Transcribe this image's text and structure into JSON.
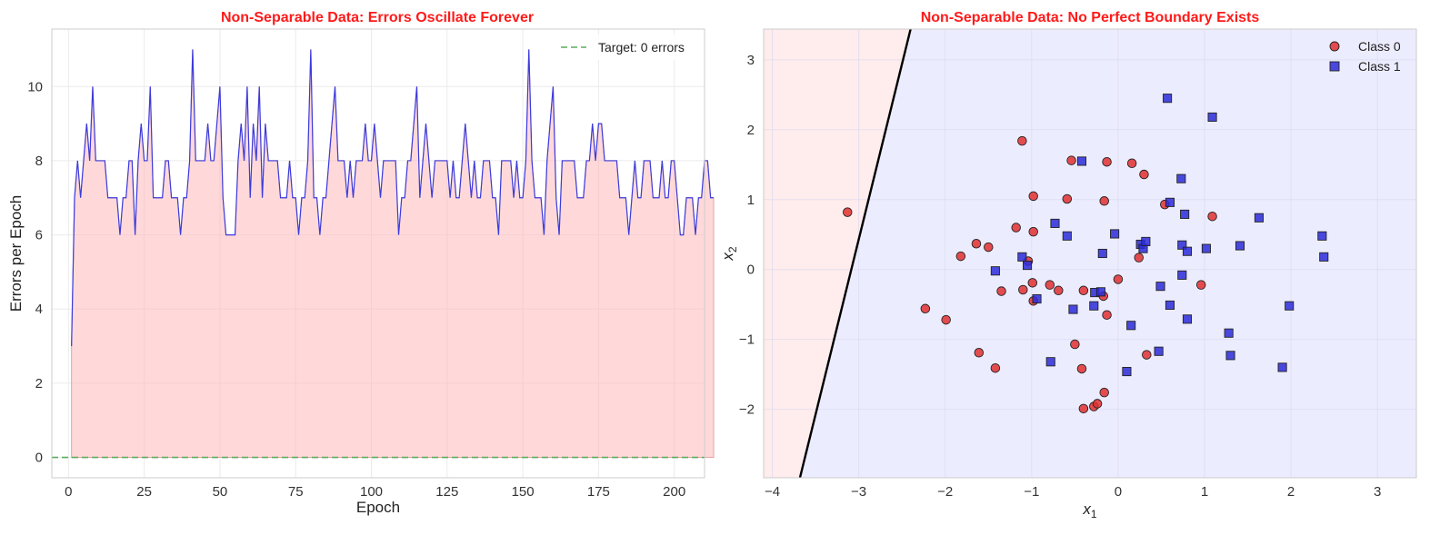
{
  "chart_data": [
    {
      "type": "line",
      "title": "Non-Separable Data: Errors Oscillate Forever",
      "xlabel": "Epoch",
      "ylabel": "Errors per Epoch",
      "xlim": [
        -5.5,
        210
      ],
      "ylim": [
        -0.55,
        11.55
      ],
      "xticks": [
        0,
        25,
        50,
        75,
        100,
        125,
        150,
        175,
        200
      ],
      "yticks": [
        0,
        2,
        4,
        6,
        8,
        10
      ],
      "grid": true,
      "legend_position": "top-right",
      "series": [
        {
          "name": "",
          "color": "#3b3bdd",
          "fill_color": "#ffb3b6",
          "x_start": 1,
          "values": [
            3,
            7,
            8,
            7,
            8,
            9,
            8,
            10,
            8,
            8,
            8,
            8,
            7,
            7,
            7,
            7,
            6,
            7,
            7,
            8,
            8,
            6,
            8,
            9,
            8,
            8,
            10,
            7,
            7,
            7,
            7,
            8,
            8,
            7,
            7,
            7,
            6,
            7,
            7,
            8,
            11,
            8,
            8,
            8,
            8,
            9,
            8,
            8,
            9,
            10,
            7,
            6,
            6,
            6,
            6,
            8,
            9,
            8,
            10,
            7,
            9,
            8,
            10,
            7,
            9,
            8,
            8,
            8,
            8,
            7,
            7,
            7,
            8,
            7,
            7,
            6,
            7,
            7,
            8,
            11,
            7,
            7,
            6,
            7,
            7,
            8,
            9,
            10,
            8,
            8,
            8,
            7,
            8,
            7,
            8,
            8,
            8,
            9,
            8,
            8,
            9,
            8,
            7,
            8,
            8,
            8,
            8,
            8,
            6,
            7,
            7,
            8,
            8,
            9,
            10,
            7,
            8,
            9,
            8,
            7,
            8,
            8,
            8,
            8,
            8,
            7,
            8,
            7,
            7,
            8,
            9,
            8,
            7,
            8,
            7,
            7,
            8,
            8,
            8,
            7,
            7,
            6,
            8,
            8,
            8,
            8,
            7,
            8,
            7,
            7,
            8,
            11,
            8,
            7,
            7,
            7,
            6,
            8,
            9,
            10,
            7,
            6,
            8,
            8,
            8,
            8,
            8,
            7,
            7,
            7,
            8,
            8,
            9,
            8,
            9,
            9,
            8,
            8,
            8,
            8,
            8,
            7,
            7,
            7,
            6,
            7,
            8,
            7,
            7,
            8,
            8,
            8,
            7,
            7,
            7,
            8,
            7,
            7,
            8,
            8,
            7,
            6,
            6,
            7,
            7,
            7,
            6,
            7,
            7,
            8,
            8,
            7,
            7
          ],
          "line_width": 1.2
        },
        {
          "name": "Target: 0 errors",
          "color": "#5cab5c",
          "style": "dashed",
          "y_constant": 0
        }
      ]
    },
    {
      "type": "scatter",
      "title": "Non-Separable Data: No Perfect Boundary Exists",
      "xlabel": "x",
      "xlabel_subscript": "1",
      "ylabel": "x",
      "ylabel_subscript": "2",
      "xlim": [
        -4.1,
        3.45
      ],
      "ylim": [
        -2.98,
        3.44
      ],
      "xticks": [
        -4,
        -3,
        -2,
        -1,
        0,
        1,
        2,
        3
      ],
      "yticks": [
        -2,
        -1,
        0,
        1,
        2,
        3
      ],
      "grid": true,
      "legend_position": "top-right",
      "decision_boundary": {
        "color": "#000000",
        "line": [
          [
            -3.68,
            -2.98
          ],
          [
            -2.4,
            3.44
          ]
        ],
        "class0_region_color": "#ffecec",
        "class1_region_color": "#ececff"
      },
      "series": [
        {
          "name": "Class 0",
          "marker": "circle",
          "color": "#e03030",
          "points": [
            [
              -3.13,
              0.82
            ],
            [
              -2.23,
              -0.56
            ],
            [
              -1.99,
              -0.72
            ],
            [
              -1.82,
              0.19
            ],
            [
              -1.64,
              0.37
            ],
            [
              -1.61,
              -1.19
            ],
            [
              -1.5,
              0.32
            ],
            [
              -1.42,
              -1.41
            ],
            [
              -1.35,
              -0.31
            ],
            [
              -1.18,
              0.6
            ],
            [
              -1.11,
              1.84
            ],
            [
              -1.1,
              -0.29
            ],
            [
              -1.04,
              0.12
            ],
            [
              -0.99,
              -0.19
            ],
            [
              -0.98,
              1.05
            ],
            [
              -0.98,
              0.54
            ],
            [
              -0.98,
              -0.45
            ],
            [
              -0.79,
              -0.22
            ],
            [
              -0.69,
              -0.3
            ],
            [
              -0.59,
              1.01
            ],
            [
              -0.54,
              1.56
            ],
            [
              -0.5,
              -1.07
            ],
            [
              -0.42,
              -1.42
            ],
            [
              -0.4,
              -0.3
            ],
            [
              -0.4,
              -1.99
            ],
            [
              -0.28,
              -1.96
            ],
            [
              -0.24,
              -1.92
            ],
            [
              -0.17,
              -0.38
            ],
            [
              -0.16,
              -1.76
            ],
            [
              -0.16,
              0.98
            ],
            [
              -0.13,
              1.54
            ],
            [
              -0.13,
              -0.65
            ],
            [
              0.0,
              -0.14
            ],
            [
              0.16,
              1.52
            ],
            [
              0.24,
              0.17
            ],
            [
              0.3,
              1.36
            ],
            [
              0.33,
              -1.22
            ],
            [
              0.54,
              0.93
            ],
            [
              0.96,
              -0.22
            ],
            [
              1.09,
              0.76
            ]
          ]
        },
        {
          "name": "Class 1",
          "marker": "square",
          "color": "#2b2bd8",
          "points": [
            [
              -1.42,
              -0.02
            ],
            [
              -1.11,
              0.18
            ],
            [
              -1.05,
              0.06
            ],
            [
              -0.94,
              -0.42
            ],
            [
              -0.78,
              -1.32
            ],
            [
              -0.73,
              0.66
            ],
            [
              -0.59,
              0.48
            ],
            [
              -0.52,
              -0.57
            ],
            [
              -0.42,
              1.55
            ],
            [
              -0.28,
              -0.52
            ],
            [
              -0.27,
              -0.33
            ],
            [
              -0.2,
              -0.32
            ],
            [
              -0.18,
              0.23
            ],
            [
              -0.04,
              0.51
            ],
            [
              0.1,
              -1.46
            ],
            [
              0.15,
              -0.8
            ],
            [
              0.26,
              0.36
            ],
            [
              0.29,
              0.3
            ],
            [
              0.32,
              0.4
            ],
            [
              0.47,
              -1.17
            ],
            [
              0.49,
              -0.24
            ],
            [
              0.57,
              2.45
            ],
            [
              0.6,
              0.96
            ],
            [
              0.6,
              -0.51
            ],
            [
              0.73,
              1.3
            ],
            [
              0.74,
              0.35
            ],
            [
              0.74,
              -0.08
            ],
            [
              0.77,
              0.79
            ],
            [
              0.8,
              -0.71
            ],
            [
              0.8,
              0.26
            ],
            [
              1.02,
              0.3
            ],
            [
              1.09,
              2.18
            ],
            [
              1.28,
              -0.91
            ],
            [
              1.3,
              -1.23
            ],
            [
              1.41,
              0.34
            ],
            [
              1.63,
              0.74
            ],
            [
              1.9,
              -1.4
            ],
            [
              1.98,
              -0.52
            ],
            [
              2.36,
              0.48
            ],
            [
              2.38,
              0.18
            ]
          ]
        }
      ]
    }
  ]
}
